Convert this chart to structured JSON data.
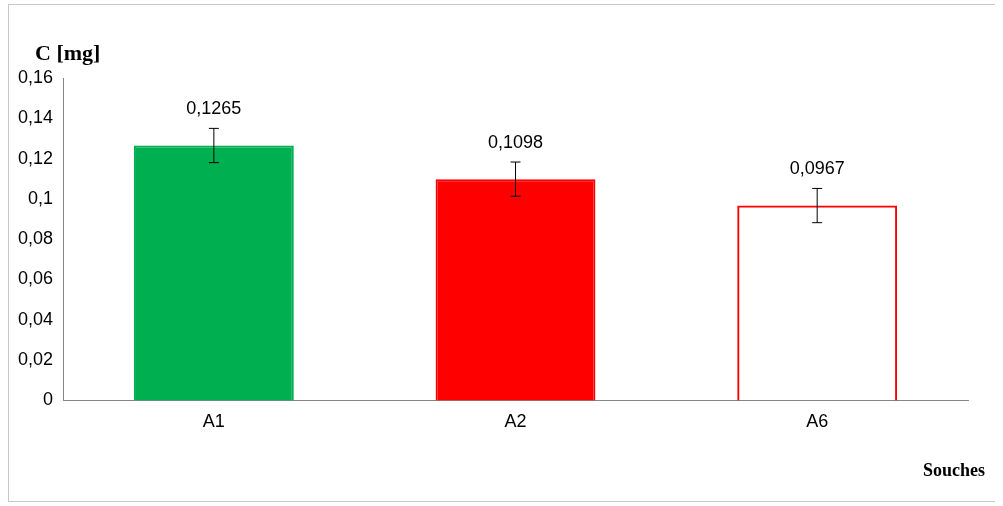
{
  "chart_data": {
    "type": "bar",
    "ylabel": "C [mg]",
    "xlabel": "Souches",
    "categories": [
      "A1",
      "A2",
      "A6"
    ],
    "values": [
      0.1265,
      0.1098,
      0.0967
    ],
    "colors": [
      "#00b050",
      "#ff0000",
      "#ff0000"
    ],
    "errors": [
      0.0085,
      0.0085,
      0.0085
    ],
    "value_labels": [
      "0,1265",
      "0,1098",
      "0,0967"
    ],
    "ylim": [
      0,
      0.16
    ],
    "yticks": [
      {
        "value": 0,
        "label": "0"
      },
      {
        "value": 0.02,
        "label": "0,02"
      },
      {
        "value": 0.04,
        "label": "0,04"
      },
      {
        "value": 0.06,
        "label": "0,06"
      },
      {
        "value": 0.08,
        "label": "0,08"
      },
      {
        "value": 0.1,
        "label": "0,1"
      },
      {
        "value": 0.12,
        "label": "0,12"
      },
      {
        "value": 0.14,
        "label": "0,14"
      },
      {
        "value": 0.16,
        "label": "0,16"
      }
    ],
    "grid": false,
    "legend": false
  }
}
